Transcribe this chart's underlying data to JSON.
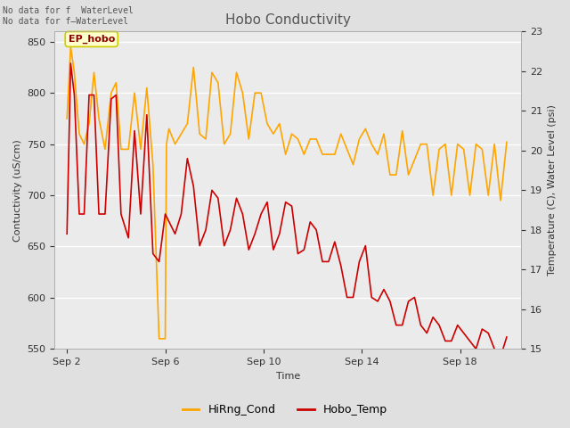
{
  "title": "Hobo Conductivity",
  "xlabel": "Time",
  "ylabel_left": "Contuctivity (uS/cm)",
  "ylabel_right": "Temperature (C), Water Level (psi)",
  "note_line1": "No data for f  WaterLevel",
  "note_line2": "No data for f—WaterLevel",
  "ep_hobo_label": "EP_hobo",
  "legend": [
    "HiRng_Cond",
    "Hobo_Temp"
  ],
  "legend_colors": [
    "#FFA500",
    "#CC0000"
  ],
  "ylim_left": [
    550,
    860
  ],
  "ylim_right": [
    15.0,
    23.0
  ],
  "yticks_left": [
    550,
    600,
    650,
    700,
    750,
    800,
    850
  ],
  "yticks_right": [
    15.0,
    16.0,
    17.0,
    18.0,
    19.0,
    20.0,
    21.0,
    22.0,
    23.0
  ],
  "xtick_labels": [
    "Sep 2",
    "Sep 6",
    "Sep 10",
    "Sep 14",
    "Sep 18"
  ],
  "xtick_positions": [
    2,
    6,
    10,
    14,
    18
  ],
  "xlim": [
    1.5,
    20.5
  ],
  "bg_color": "#E0E0E0",
  "plot_bg_color": "#EBEBEB",
  "grid_color": "#FFFFFF",
  "hirng_cond_x": [
    2.0,
    2.15,
    2.3,
    2.5,
    2.7,
    2.9,
    3.1,
    3.3,
    3.55,
    3.8,
    4.0,
    4.2,
    4.5,
    4.75,
    5.0,
    5.25,
    5.5,
    5.75,
    6.0,
    6.05,
    6.15,
    6.4,
    6.65,
    6.9,
    7.15,
    7.4,
    7.65,
    7.9,
    8.15,
    8.4,
    8.65,
    8.9,
    9.15,
    9.4,
    9.65,
    9.9,
    10.15,
    10.4,
    10.65,
    10.9,
    11.15,
    11.4,
    11.65,
    11.9,
    12.15,
    12.4,
    12.65,
    12.9,
    13.15,
    13.4,
    13.65,
    13.9,
    14.15,
    14.4,
    14.65,
    14.9,
    15.15,
    15.4,
    15.65,
    15.9,
    16.15,
    16.4,
    16.65,
    16.9,
    17.15,
    17.4,
    17.65,
    17.9,
    18.15,
    18.4,
    18.65,
    18.9,
    19.15,
    19.4,
    19.65,
    19.9
  ],
  "hirng_cond_y": [
    775,
    845,
    820,
    760,
    750,
    770,
    820,
    775,
    745,
    800,
    810,
    745,
    745,
    800,
    745,
    805,
    730,
    560,
    560,
    750,
    765,
    750,
    760,
    770,
    825,
    760,
    755,
    820,
    810,
    750,
    760,
    820,
    800,
    755,
    800,
    800,
    770,
    760,
    770,
    740,
    760,
    755,
    740,
    755,
    755,
    740,
    740,
    740,
    760,
    745,
    730,
    755,
    765,
    750,
    740,
    760,
    720,
    720,
    763,
    720,
    735,
    750,
    750,
    700,
    745,
    750,
    700,
    750,
    745,
    700,
    750,
    745,
    700,
    750,
    695,
    752
  ],
  "hobo_temp_x": [
    2.0,
    2.15,
    2.3,
    2.5,
    2.7,
    2.9,
    3.1,
    3.3,
    3.55,
    3.8,
    4.0,
    4.2,
    4.5,
    4.75,
    5.0,
    5.25,
    5.5,
    5.75,
    6.0,
    6.4,
    6.65,
    6.9,
    7.15,
    7.4,
    7.65,
    7.9,
    8.15,
    8.4,
    8.65,
    8.9,
    9.15,
    9.4,
    9.65,
    9.9,
    10.15,
    10.4,
    10.65,
    10.9,
    11.15,
    11.4,
    11.65,
    11.9,
    12.15,
    12.4,
    12.65,
    12.9,
    13.15,
    13.4,
    13.65,
    13.9,
    14.15,
    14.4,
    14.65,
    14.9,
    15.15,
    15.4,
    15.65,
    15.9,
    16.15,
    16.4,
    16.65,
    16.9,
    17.15,
    17.4,
    17.65,
    17.9,
    18.15,
    18.4,
    18.65,
    18.9,
    19.15,
    19.4,
    19.65,
    19.9
  ],
  "hobo_temp_y": [
    17.9,
    22.2,
    21.4,
    18.4,
    18.4,
    21.4,
    21.4,
    18.4,
    18.4,
    21.3,
    21.4,
    18.4,
    17.8,
    20.5,
    18.4,
    20.9,
    17.4,
    17.2,
    18.4,
    17.9,
    18.4,
    19.8,
    19.1,
    17.6,
    18.0,
    19.0,
    18.8,
    17.6,
    18.0,
    18.8,
    18.4,
    17.5,
    17.9,
    18.4,
    18.7,
    17.5,
    17.9,
    18.7,
    18.6,
    17.4,
    17.5,
    18.2,
    18.0,
    17.2,
    17.2,
    17.7,
    17.1,
    16.3,
    16.3,
    17.2,
    17.6,
    16.3,
    16.2,
    16.5,
    16.2,
    15.6,
    15.6,
    16.2,
    16.3,
    15.6,
    15.4,
    15.8,
    15.6,
    15.2,
    15.2,
    15.6,
    15.4,
    15.2,
    15.0,
    15.5,
    15.4,
    15.0,
    14.8,
    15.3
  ]
}
